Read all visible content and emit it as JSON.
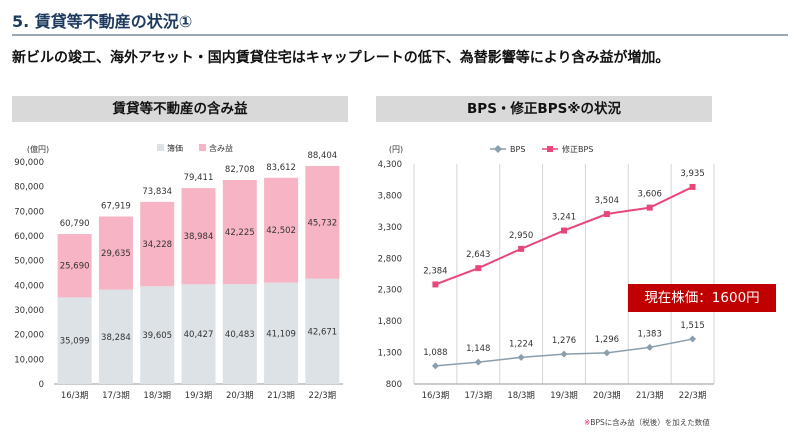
{
  "page": {
    "heading": "5. 賃貸等不動産の状況①",
    "subtitle": "新ビルの竣工、海外アセット・国内賃貸住宅はキャップレートの低下、為替影響等により含み益が増加。"
  },
  "left_panel": {
    "title": "賃貸等不動産の含み益"
  },
  "right_panel": {
    "title": "BPS・修正BPS※の状況",
    "price_badge": "現在株価：1600円",
    "footnote_mark": "※",
    "footnote": "BPSに含み益（税後）を加えた数値"
  },
  "colors": {
    "book": "#dde2e6",
    "gain": "#f7b4c4",
    "bps": "#8a9eab",
    "adj_bps": "#e8477a",
    "badge": "#c00000"
  },
  "chart_data": [
    {
      "type": "bar",
      "stacked": true,
      "title": "賃貸等不動産の含み益",
      "ylabel": "(億円)",
      "ylim": [
        0,
        90000
      ],
      "yticks": [
        0,
        10000,
        20000,
        30000,
        40000,
        50000,
        60000,
        70000,
        80000,
        90000
      ],
      "ytick_labels": [
        "0",
        "10,000",
        "20,000",
        "30,000",
        "40,000",
        "50,000",
        "60,000",
        "70,000",
        "80,000",
        "90,000"
      ],
      "categories": [
        "16/3期",
        "17/3期",
        "18/3期",
        "19/3期",
        "20/3期",
        "21/3期",
        "22/3期"
      ],
      "legend_position": "top",
      "series": [
        {
          "name": "簿価",
          "color": "#dde2e6",
          "values": [
            35099,
            38284,
            39605,
            40427,
            40483,
            41109,
            42671
          ],
          "labels": [
            "35,099",
            "38,284",
            "39,605",
            "40,427",
            "40,483",
            "41,109",
            "42,671"
          ]
        },
        {
          "name": "含み益",
          "color": "#f7b4c4",
          "values": [
            25690,
            29635,
            34228,
            38984,
            42225,
            42502,
            45732
          ],
          "labels": [
            "25,690",
            "29,635",
            "34,228",
            "38,984",
            "42,225",
            "42,502",
            "45,732"
          ]
        }
      ],
      "totals": [
        60790,
        67919,
        73834,
        79411,
        82708,
        83612,
        88404
      ],
      "total_labels": [
        "60,790",
        "67,919",
        "73,834",
        "79,411",
        "82,708",
        "83,612",
        "88,404"
      ]
    },
    {
      "type": "line",
      "title": "BPS・修正BPS※の状況",
      "ylabel": "(円)",
      "ylim": [
        800,
        4300
      ],
      "yticks": [
        800,
        1300,
        1800,
        2300,
        2800,
        3300,
        3800,
        4300
      ],
      "ytick_labels": [
        "800",
        "1,300",
        "1,800",
        "2,300",
        "2,800",
        "3,300",
        "3,800",
        "4,300"
      ],
      "categories": [
        "16/3期",
        "17/3期",
        "18/3期",
        "19/3期",
        "20/3期",
        "21/3期",
        "22/3期"
      ],
      "legend_position": "top",
      "series": [
        {
          "name": "BPS",
          "color": "#8a9eab",
          "marker": "diamond",
          "values": [
            1088,
            1148,
            1224,
            1276,
            1296,
            1383,
            1515
          ],
          "labels": [
            "1,088",
            "1,148",
            "1,224",
            "1,276",
            "1,296",
            "1,383",
            "1,515"
          ]
        },
        {
          "name": "修正BPS",
          "color": "#e8477a",
          "marker": "square",
          "values": [
            2384,
            2643,
            2950,
            3241,
            3504,
            3606,
            3935
          ],
          "labels": [
            "2,384",
            "2,643",
            "2,950",
            "3,241",
            "3,504",
            "3,606",
            "3,935"
          ]
        }
      ]
    }
  ]
}
